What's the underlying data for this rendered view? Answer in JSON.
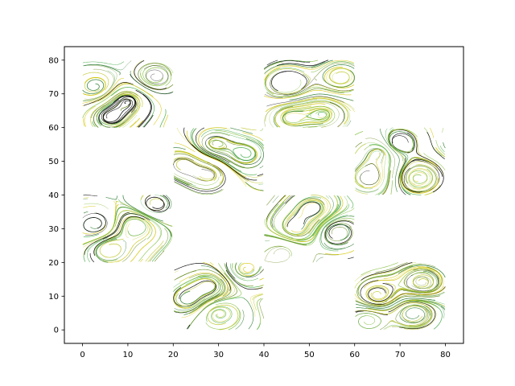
{
  "chart_data": {
    "type": "streamplot",
    "title": "",
    "xlabel": "",
    "ylabel": "",
    "xlim": [
      -4,
      84
    ],
    "ylim": [
      -4,
      84
    ],
    "x_ticks": [
      0,
      10,
      20,
      30,
      40,
      50,
      60,
      70,
      80
    ],
    "y_ticks": [
      0,
      10,
      20,
      30,
      40,
      50,
      60,
      70,
      80
    ],
    "grid": false,
    "legend": "none",
    "colors": [
      "#000000",
      "#2e7d32",
      "#4caf50",
      "#8bc34a",
      "#c0ca33",
      "#d4c400",
      "#6b8e23"
    ],
    "blocks": [
      {
        "x": [
          0,
          20
        ],
        "y": [
          60,
          80
        ]
      },
      {
        "x": [
          40,
          60
        ],
        "y": [
          60,
          80
        ]
      },
      {
        "x": [
          20,
          40
        ],
        "y": [
          40,
          60
        ]
      },
      {
        "x": [
          60,
          80
        ],
        "y": [
          40,
          60
        ]
      },
      {
        "x": [
          0,
          20
        ],
        "y": [
          20,
          40
        ]
      },
      {
        "x": [
          40,
          60
        ],
        "y": [
          20,
          40
        ]
      },
      {
        "x": [
          20,
          40
        ],
        "y": [
          0,
          20
        ]
      },
      {
        "x": [
          60,
          80
        ],
        "y": [
          0,
          20
        ]
      }
    ],
    "vortices": [
      {
        "x": 3,
        "y": 72,
        "s": 1
      },
      {
        "x": 10,
        "y": 68,
        "s": -1
      },
      {
        "x": 16,
        "y": 75,
        "s": 1
      },
      {
        "x": 6,
        "y": 63,
        "s": -1
      },
      {
        "x": 45,
        "y": 73,
        "s": -1
      },
      {
        "x": 53,
        "y": 64,
        "s": 1
      },
      {
        "x": 57,
        "y": 75,
        "s": -1
      },
      {
        "x": 46,
        "y": 63,
        "s": 1
      },
      {
        "x": 29,
        "y": 55,
        "s": 1
      },
      {
        "x": 28,
        "y": 46,
        "s": -1
      },
      {
        "x": 36,
        "y": 52,
        "s": 1
      },
      {
        "x": 22,
        "y": 49,
        "s": -1
      },
      {
        "x": 66,
        "y": 53,
        "s": -1
      },
      {
        "x": 74,
        "y": 45,
        "s": 1
      },
      {
        "x": 69,
        "y": 55,
        "s": 1
      },
      {
        "x": 63,
        "y": 45,
        "s": -1
      },
      {
        "x": 3,
        "y": 31,
        "s": 1
      },
      {
        "x": 12,
        "y": 31,
        "s": -1
      },
      {
        "x": 6,
        "y": 24,
        "s": -1
      },
      {
        "x": 16,
        "y": 37,
        "s": 1
      },
      {
        "x": 47,
        "y": 30,
        "s": 1
      },
      {
        "x": 56,
        "y": 29,
        "s": -1
      },
      {
        "x": 51,
        "y": 36,
        "s": 1
      },
      {
        "x": 44,
        "y": 23,
        "s": -1
      },
      {
        "x": 28,
        "y": 13,
        "s": 1
      },
      {
        "x": 36,
        "y": 18,
        "s": -1
      },
      {
        "x": 30,
        "y": 5,
        "s": -1
      },
      {
        "x": 23,
        "y": 9,
        "s": 1
      },
      {
        "x": 73,
        "y": 5,
        "s": 1
      },
      {
        "x": 65,
        "y": 10,
        "s": -1
      },
      {
        "x": 75,
        "y": 14,
        "s": -1
      },
      {
        "x": 63,
        "y": 3,
        "s": 1
      }
    ]
  },
  "axis_labels": {
    "x": [
      "0",
      "10",
      "20",
      "30",
      "40",
      "50",
      "60",
      "70",
      "80"
    ],
    "y": [
      "0",
      "10",
      "20",
      "30",
      "40",
      "50",
      "60",
      "70",
      "80"
    ]
  }
}
